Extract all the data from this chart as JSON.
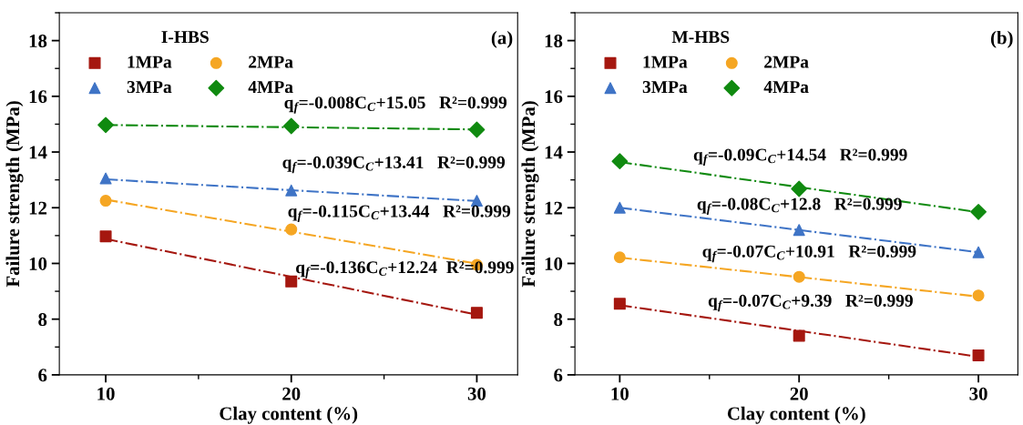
{
  "chart_data": [
    {
      "type": "scatter",
      "xlabel": "Clay content (%)",
      "ylabel": "Failure strength (MPa)",
      "legend_title": "I-HBS",
      "legend": "top left",
      "grid": false,
      "xlim": [
        7.5,
        32.2
      ],
      "xticks": [
        10,
        20,
        30
      ],
      "ylim": [
        6,
        19
      ],
      "yticks": [
        6,
        8,
        10,
        12,
        14,
        16,
        18
      ],
      "x": [
        10,
        20,
        30
      ],
      "series": [
        {
          "name": "1MPa",
          "color": "#a5170f",
          "marker": "square",
          "values": [
            10.97,
            9.35,
            8.23
          ]
        },
        {
          "name": "2MPa",
          "color": "#f5a623",
          "marker": "circle",
          "values": [
            12.25,
            11.22,
            9.95
          ]
        },
        {
          "name": "3MPa",
          "color": "#3f74c6",
          "marker": "triangle",
          "values": [
            13.05,
            12.62,
            12.25
          ]
        },
        {
          "name": "4MPa",
          "color": "#108a10",
          "marker": "diamond",
          "values": [
            14.97,
            14.93,
            14.8
          ]
        },
        {
          "type": "line",
          "color": "#a5170f",
          "line_style": "dashdot",
          "values": [
            10.88,
            9.52,
            8.16
          ]
        },
        {
          "type": "line",
          "color": "#f5a623",
          "line_style": "dashdot",
          "values": [
            12.29,
            11.14,
            9.99
          ]
        },
        {
          "type": "line",
          "color": "#3f74c6",
          "line_style": "dashdot",
          "values": [
            13.02,
            12.63,
            12.24
          ]
        },
        {
          "type": "line",
          "color": "#108a10",
          "line_style": "dashdot",
          "values": [
            14.97,
            14.89,
            14.81
          ]
        }
      ],
      "annotations": [
        "q$_{f}$=-0.008C$_{C}$+15.05   R²=0.999",
        "q$_{f}$=-0.039C$_{C}$+13.41   R²=0.999",
        "q$_{f}$=-0.115C$_{C}$+13.44   R²=0.999",
        "q$_{f}$=-0.136C$_{C}$+12.24  R²=0.999",
        "(a)"
      ]
    },
    {
      "type": "scatter",
      "xlabel": "Clay content (%)",
      "ylabel": "Failure strength (MPa)",
      "legend_title": "M-HBS",
      "legend": "top left",
      "grid": false,
      "xlim": [
        7.5,
        32.2
      ],
      "xticks": [
        10,
        20,
        30
      ],
      "ylim": [
        6,
        19
      ],
      "yticks": [
        6,
        8,
        10,
        12,
        14,
        16,
        18
      ],
      "x": [
        10,
        20,
        30
      ],
      "series": [
        {
          "name": "1MPa",
          "color": "#a5170f",
          "marker": "square",
          "values": [
            8.55,
            7.4,
            6.7
          ]
        },
        {
          "name": "2MPa",
          "color": "#f5a623",
          "marker": "circle",
          "values": [
            10.22,
            9.52,
            8.85
          ]
        },
        {
          "name": "3MPa",
          "color": "#3f74c6",
          "marker": "triangle",
          "values": [
            12.0,
            11.2,
            10.4
          ]
        },
        {
          "name": "4MPa",
          "color": "#108a10",
          "marker": "diamond",
          "values": [
            13.67,
            12.68,
            11.85
          ]
        },
        {
          "type": "line",
          "color": "#a5170f",
          "line_style": "dashdot",
          "values": [
            8.5,
            7.58,
            6.65
          ]
        },
        {
          "type": "line",
          "color": "#f5a623",
          "line_style": "dashdot",
          "values": [
            10.21,
            9.51,
            8.81
          ]
        },
        {
          "type": "line",
          "color": "#3f74c6",
          "line_style": "dashdot",
          "values": [
            12.0,
            11.2,
            10.4
          ]
        },
        {
          "type": "line",
          "color": "#108a10",
          "line_style": "dashdot",
          "values": [
            13.64,
            12.74,
            11.84
          ]
        }
      ],
      "annotations": [
        "q$_{f}$=-0.09C$_{C}$+14.54   R²=0.999",
        "q$_{f}$=-0.08C$_{C}$+12.8   R²=0.999",
        "q$_{f}$=-0.07C$_{C}$+10.91   R²=0.999",
        "q$_{f}$=-0.07C$_{C}$+9.39   R²=0.999",
        "(b)"
      ]
    }
  ]
}
